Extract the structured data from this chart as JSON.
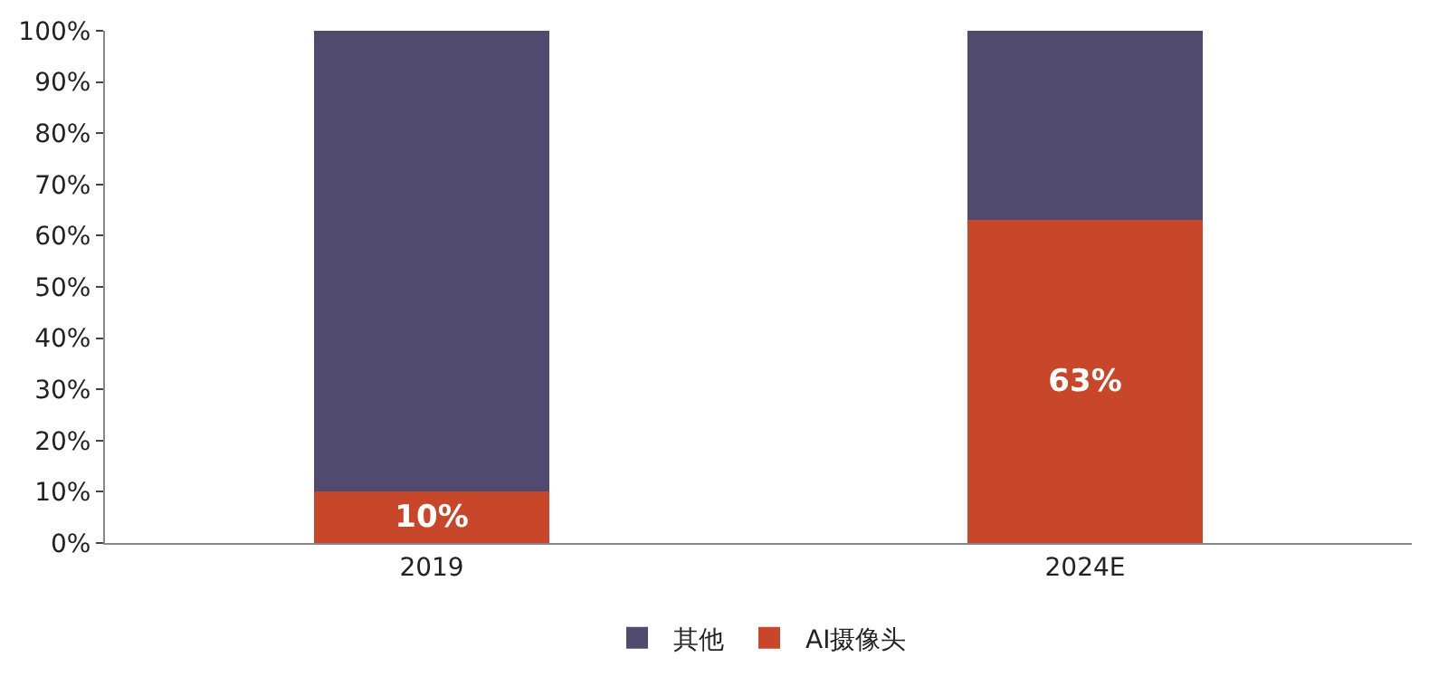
{
  "chart_data": {
    "type": "bar",
    "stacked": true,
    "categories": [
      "2019",
      "2024E"
    ],
    "series": [
      {
        "name": "AI摄像头",
        "color": "#c8472a",
        "values": [
          10,
          63
        ],
        "value_labels": [
          "10%",
          "63%"
        ]
      },
      {
        "name": "其他",
        "color": "#4f4a6e",
        "values": [
          90,
          37
        ]
      }
    ],
    "ylim": [
      0,
      100
    ],
    "yticks": [
      {
        "value": 0,
        "label": "0%"
      },
      {
        "value": 10,
        "label": "10%"
      },
      {
        "value": 20,
        "label": "20%"
      },
      {
        "value": 30,
        "label": "30%"
      },
      {
        "value": 40,
        "label": "40%"
      },
      {
        "value": 50,
        "label": "50%"
      },
      {
        "value": 60,
        "label": "60%"
      },
      {
        "value": 70,
        "label": "70%"
      },
      {
        "value": 80,
        "label": "80%"
      },
      {
        "value": 90,
        "label": "90%"
      },
      {
        "value": 100,
        "label": "100%"
      }
    ],
    "grid": false,
    "legend": "bottom"
  }
}
